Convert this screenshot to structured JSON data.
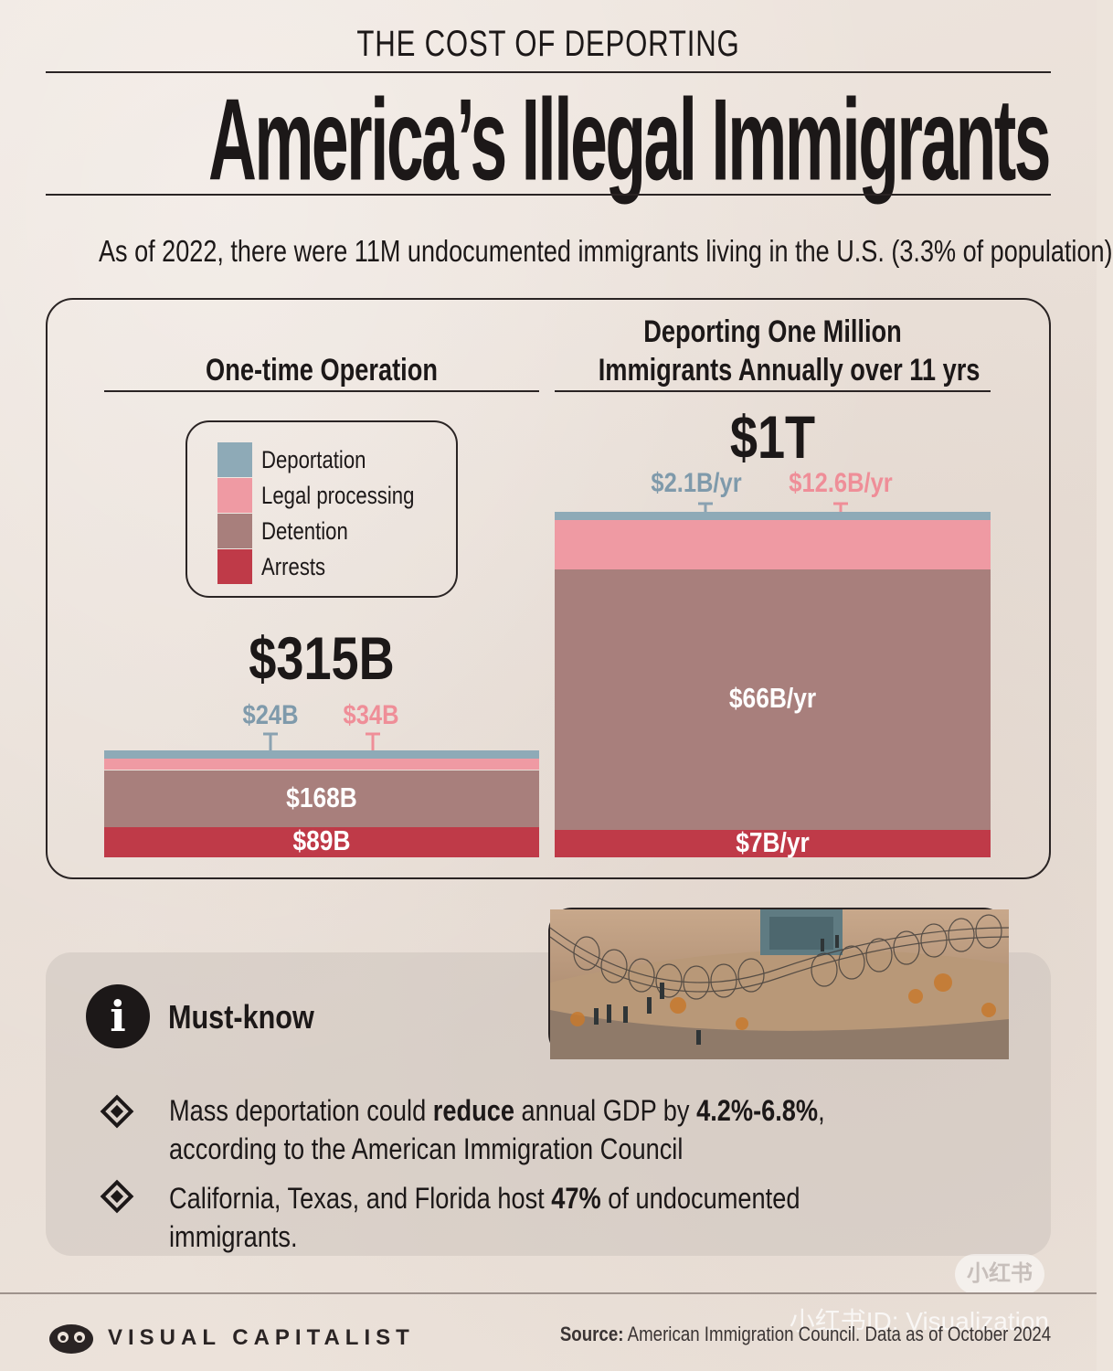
{
  "header": {
    "kicker": "THE COST OF DEPORTING",
    "title": "America’s Illegal Immigrants",
    "subtitle": "As of 2022, there were 11M undocumented immigrants living in the U.S. (3.3% of population)"
  },
  "colors": {
    "deportation": "#8eaab7",
    "legal_processing": "#ef9aa3",
    "detention": "#a87f7c",
    "arrests": "#bf3a48",
    "deportation_label": "#7f9aab",
    "legal_label": "#ef8e98",
    "ink": "#1c1818"
  },
  "chart_data": [
    {
      "type": "bar",
      "title": "One-time Operation",
      "total_label": "$315B",
      "stack_order": [
        "Arrests",
        "Detention",
        "Legal processing",
        "Deportation"
      ],
      "series": [
        {
          "name": "Arrests",
          "value": 89,
          "label": "$89B"
        },
        {
          "name": "Detention",
          "value": 168,
          "label": "$168B"
        },
        {
          "name": "Legal processing",
          "value": 34,
          "label": "$34B"
        },
        {
          "name": "Deportation",
          "value": 24,
          "label": "$24B"
        }
      ],
      "unit": "billion USD"
    },
    {
      "type": "bar",
      "title": "Deporting One Million Immigrants Annually over 11 yrs",
      "title_lines": [
        "Deporting One Million",
        "Immigrants Annually over 11 yrs"
      ],
      "total_label": "$1T",
      "stack_order": [
        "Arrests",
        "Detention",
        "Legal processing",
        "Deportation"
      ],
      "series": [
        {
          "name": "Arrests",
          "value": 7,
          "label": "$7B/yr"
        },
        {
          "name": "Detention",
          "value": 66,
          "label": "$66B/yr"
        },
        {
          "name": "Legal processing",
          "value": 12.6,
          "label": "$12.6B/yr"
        },
        {
          "name": "Deportation",
          "value": 2.1,
          "label": "$2.1B/yr"
        }
      ],
      "unit": "billion USD per year"
    }
  ],
  "legend": {
    "items": [
      {
        "name": "Deportation",
        "color": "#8eaab7"
      },
      {
        "name": "Legal processing",
        "color": "#ef9aa3"
      },
      {
        "name": "Detention",
        "color": "#a87f7c"
      },
      {
        "name": "Arrests",
        "color": "#bf3a48"
      }
    ]
  },
  "mustknow": {
    "icon": "info-icon",
    "heading": "Must-know",
    "bullets": [
      {
        "pre": "Mass deportation could ",
        "bold1": "reduce",
        "mid": " annual GDP by ",
        "bold2": "4.2%-6.8%",
        "post": ", according to the American Immigration Council"
      },
      {
        "pre": "California, Texas, and Florida host ",
        "bold1": "47%",
        "post": " of undocumented immigrants."
      }
    ]
  },
  "footer": {
    "brand": "VISUAL CAPITALIST",
    "source_label": "Source:",
    "source_text": "American Immigration Council. Data as of October 2024",
    "watermark_badge": "小红书",
    "watermark_id": "小红书ID: Visualization"
  }
}
